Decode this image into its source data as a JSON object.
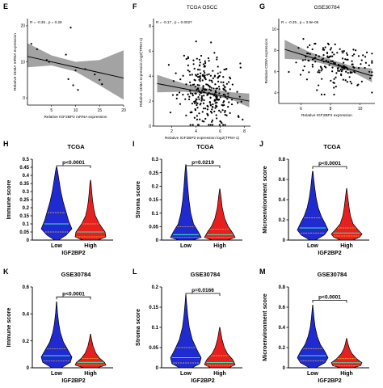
{
  "colors": {
    "low": "#1f2bd1",
    "high": "#e6201f",
    "median": "#38e8b0",
    "quartile": "#f2c230",
    "band": "#8c8c8c"
  },
  "chart_data": [
    {
      "id": "E",
      "letter": "E",
      "type": "scatter",
      "xlabel": "Relative IGF2BP2 mRNA expression",
      "ylabel": "Relative CD8A mRNA expression",
      "annotation": "R = -0.36 , p = 0.28",
      "xlim": [
        0,
        20
      ],
      "ylim": [
        -2,
        22
      ],
      "xticks": [
        5,
        10,
        15,
        20
      ],
      "yticks": [
        0,
        10,
        20
      ],
      "points": [
        [
          0.8,
          15
        ],
        [
          2,
          13.5
        ],
        [
          4,
          10.5
        ],
        [
          4.5,
          10
        ],
        [
          8,
          12
        ],
        [
          9,
          19.5
        ],
        [
          8.5,
          5.2
        ],
        [
          10,
          7.6
        ],
        [
          12,
          8
        ],
        [
          14,
          6.5
        ],
        [
          15,
          5
        ],
        [
          15.5,
          3.8
        ],
        [
          9.5,
          3.5
        ],
        [
          10.5,
          2.2
        ]
      ],
      "fit": [
        [
          0,
          11.5
        ],
        [
          20,
          5.5
        ]
      ],
      "band_lower": [
        [
          0,
          8.5
        ],
        [
          5,
          9.0
        ],
        [
          10,
          7.3
        ],
        [
          15,
          3.5
        ],
        [
          20,
          -0.5
        ]
      ],
      "band_upper": [
        [
          0,
          15.2
        ],
        [
          5,
          11.8
        ],
        [
          10,
          10.0
        ],
        [
          15,
          10.5
        ],
        [
          20,
          13.2
        ]
      ]
    },
    {
      "id": "F",
      "letter": "F",
      "type": "scatter",
      "title": "TCGA OSCC",
      "xlabel": "Relative IGF2BP2 expression log2(TPM+1)",
      "ylabel": "Relative CD8A expression log2(TPM+1)",
      "annotation": "R = -0.17 , p = 0.0027",
      "xlim": [
        0.5,
        8.5
      ],
      "ylim": [
        0,
        8.6
      ],
      "xticks": [
        2,
        4,
        6,
        8
      ],
      "yticks": [
        0,
        2,
        4,
        6,
        8
      ],
      "fit": [
        [
          0.8,
          3.4
        ],
        [
          8.4,
          2.0
        ]
      ],
      "band_lower": [
        [
          0.8,
          2.7
        ],
        [
          3,
          2.75
        ],
        [
          5,
          2.55
        ],
        [
          7,
          2.1
        ],
        [
          8.4,
          1.5
        ]
      ],
      "band_upper": [
        [
          0.8,
          4.1
        ],
        [
          3,
          3.4
        ],
        [
          5,
          3.0
        ],
        [
          7,
          2.7
        ],
        [
          8.4,
          2.6
        ]
      ],
      "cloud": {
        "n": 300,
        "xc": 5,
        "xsd": 1.15,
        "yc": 2.8,
        "ysd": 1.45,
        "seed": 11
      }
    },
    {
      "id": "G",
      "letter": "G",
      "type": "scatter",
      "title": "GSE30784",
      "xlabel": "Relative IGF2BP2 expression",
      "ylabel": "Relative CD8A expression",
      "annotation": "R = -0.35 , p = 3.9e-06",
      "xlim": [
        4.5,
        11
      ],
      "ylim": [
        3,
        11
      ],
      "xticks": [
        6,
        8,
        10
      ],
      "yticks": [
        4,
        6,
        8,
        10
      ],
      "fit": [
        [
          4.9,
          8.1
        ],
        [
          10.8,
          5.6
        ]
      ],
      "band_lower": [
        [
          4.9,
          7.2
        ],
        [
          6.5,
          7.1
        ],
        [
          8,
          6.55
        ],
        [
          9.5,
          5.95
        ],
        [
          10.8,
          5.0
        ]
      ],
      "band_upper": [
        [
          4.9,
          9.0
        ],
        [
          6.5,
          7.9
        ],
        [
          8,
          7.15
        ],
        [
          9.5,
          6.5
        ],
        [
          10.8,
          6.3
        ]
      ],
      "cloud": {
        "n": 165,
        "xc": 8.3,
        "xsd": 1.25,
        "yc": 6.6,
        "ysd": 1.05,
        "seed": 7
      }
    },
    {
      "id": "H",
      "letter": "H",
      "type": "violin",
      "title": "TCGA",
      "ylabel": "Immune score",
      "xlabel": "IGF2BP2",
      "categories": [
        "Low",
        "High"
      ],
      "pvalue": "p<0.0001",
      "ylim": [
        0,
        0.5
      ],
      "yticks": [
        0,
        0.05,
        0.1,
        0.15,
        0.2,
        0.25,
        0.3,
        0.35,
        0.4,
        0.45,
        0.5
      ],
      "violins": [
        {
          "name": "Low",
          "max": 0.45,
          "median": 0.1,
          "q1": 0.05,
          "q3": 0.17,
          "profile": [
            [
              0,
              0.12
            ],
            [
              0.03,
              0.62
            ],
            [
              0.07,
              1
            ],
            [
              0.12,
              0.78
            ],
            [
              0.18,
              0.6
            ],
            [
              0.24,
              0.42
            ],
            [
              0.3,
              0.28
            ],
            [
              0.37,
              0.16
            ],
            [
              0.42,
              0.08
            ],
            [
              0.45,
              0.02
            ]
          ]
        },
        {
          "name": "High",
          "max": 0.37,
          "median": 0.05,
          "q1": 0.02,
          "q3": 0.1,
          "profile": [
            [
              0,
              0.5
            ],
            [
              0.02,
              1
            ],
            [
              0.05,
              0.95
            ],
            [
              0.1,
              0.58
            ],
            [
              0.15,
              0.32
            ],
            [
              0.2,
              0.2
            ],
            [
              0.25,
              0.13
            ],
            [
              0.3,
              0.08
            ],
            [
              0.35,
              0.04
            ],
            [
              0.37,
              0.01
            ]
          ]
        }
      ]
    },
    {
      "id": "I",
      "letter": "I",
      "type": "violin",
      "title": "TCGA",
      "ylabel": "Stroma score",
      "xlabel": "",
      "categories": [
        "Low",
        "High"
      ],
      "pvalue": "p=0.0219",
      "ylim": [
        0,
        0.3
      ],
      "yticks": [
        0,
        0.05,
        0.1,
        0.15,
        0.2,
        0.25,
        0.3
      ],
      "violins": [
        {
          "name": "Low",
          "max": 0.28,
          "median": 0.02,
          "q1": 0.01,
          "q3": 0.05,
          "profile": [
            [
              0,
              0.45
            ],
            [
              0.01,
              1
            ],
            [
              0.03,
              0.82
            ],
            [
              0.06,
              0.5
            ],
            [
              0.1,
              0.32
            ],
            [
              0.15,
              0.2
            ],
            [
              0.2,
              0.12
            ],
            [
              0.25,
              0.06
            ],
            [
              0.28,
              0.01
            ]
          ]
        },
        {
          "name": "High",
          "max": 0.19,
          "median": 0.02,
          "q1": 0.01,
          "q3": 0.04,
          "profile": [
            [
              0,
              0.5
            ],
            [
              0.01,
              1
            ],
            [
              0.03,
              0.8
            ],
            [
              0.05,
              0.55
            ],
            [
              0.08,
              0.32
            ],
            [
              0.12,
              0.16
            ],
            [
              0.16,
              0.08
            ],
            [
              0.19,
              0.01
            ]
          ]
        }
      ]
    },
    {
      "id": "J",
      "letter": "J",
      "type": "violin",
      "title": "TCGA",
      "ylabel": "Microenvironment score",
      "xlabel": "IGF2BP2",
      "categories": [
        "Low",
        "High"
      ],
      "pvalue": "p<0.0001",
      "ylim": [
        0,
        0.8
      ],
      "yticks": [
        0,
        0.2,
        0.4,
        0.6,
        0.8
      ],
      "violins": [
        {
          "name": "Low",
          "max": 0.68,
          "median": 0.12,
          "q1": 0.07,
          "q3": 0.22,
          "profile": [
            [
              0,
              0.18
            ],
            [
              0.05,
              0.75
            ],
            [
              0.1,
              1
            ],
            [
              0.16,
              0.82
            ],
            [
              0.24,
              0.55
            ],
            [
              0.32,
              0.36
            ],
            [
              0.42,
              0.22
            ],
            [
              0.52,
              0.13
            ],
            [
              0.6,
              0.07
            ],
            [
              0.68,
              0.02
            ]
          ]
        },
        {
          "name": "High",
          "max": 0.51,
          "median": 0.07,
          "q1": 0.04,
          "q3": 0.12,
          "profile": [
            [
              0,
              0.4
            ],
            [
              0.03,
              0.85
            ],
            [
              0.06,
              1
            ],
            [
              0.1,
              0.75
            ],
            [
              0.16,
              0.42
            ],
            [
              0.24,
              0.25
            ],
            [
              0.32,
              0.16
            ],
            [
              0.42,
              0.08
            ],
            [
              0.51,
              0.01
            ]
          ]
        }
      ]
    },
    {
      "id": "K",
      "letter": "K",
      "type": "violin",
      "title": "GSE30784",
      "ylabel": "Immune score",
      "xlabel": "IGF2BP2",
      "categories": [
        "Low",
        "High"
      ],
      "pvalue": "p<0.0001",
      "ylim": [
        0,
        0.6
      ],
      "yticks": [
        0,
        0.2,
        0.4,
        0.6
      ],
      "violins": [
        {
          "name": "Low",
          "max": 0.49,
          "median": 0.09,
          "q1": 0.05,
          "q3": 0.14,
          "profile": [
            [
              0,
              0.3
            ],
            [
              0.04,
              0.9
            ],
            [
              0.08,
              1
            ],
            [
              0.13,
              0.75
            ],
            [
              0.19,
              0.45
            ],
            [
              0.26,
              0.25
            ],
            [
              0.33,
              0.14
            ],
            [
              0.41,
              0.06
            ],
            [
              0.49,
              0.01
            ]
          ]
        },
        {
          "name": "High",
          "max": 0.25,
          "median": 0.04,
          "q1": 0.02,
          "q3": 0.07,
          "profile": [
            [
              0,
              0.45
            ],
            [
              0.02,
              1
            ],
            [
              0.04,
              0.92
            ],
            [
              0.07,
              0.6
            ],
            [
              0.11,
              0.34
            ],
            [
              0.16,
              0.17
            ],
            [
              0.21,
              0.07
            ],
            [
              0.25,
              0.01
            ]
          ]
        }
      ]
    },
    {
      "id": "L",
      "letter": "L",
      "type": "violin",
      "title": "GSE30784",
      "ylabel": "Stroma score",
      "xlabel": "IGF2BP2",
      "categories": [
        "Low",
        "High"
      ],
      "pvalue": "p=0.0166",
      "ylim": [
        0,
        0.2
      ],
      "yticks": [
        0,
        0.05,
        0.1,
        0.15,
        0.2
      ],
      "violins": [
        {
          "name": "Low",
          "max": 0.18,
          "median": 0.025,
          "q1": 0.012,
          "q3": 0.05,
          "profile": [
            [
              0,
              0.4
            ],
            [
              0.01,
              0.9
            ],
            [
              0.025,
              1
            ],
            [
              0.045,
              0.72
            ],
            [
              0.07,
              0.42
            ],
            [
              0.1,
              0.22
            ],
            [
              0.13,
              0.12
            ],
            [
              0.16,
              0.05
            ],
            [
              0.18,
              0.01
            ]
          ]
        },
        {
          "name": "High",
          "max": 0.1,
          "median": 0.013,
          "q1": 0.006,
          "q3": 0.03,
          "profile": [
            [
              0,
              0.6
            ],
            [
              0.008,
              1
            ],
            [
              0.02,
              0.85
            ],
            [
              0.035,
              0.5
            ],
            [
              0.05,
              0.3
            ],
            [
              0.07,
              0.15
            ],
            [
              0.085,
              0.08
            ],
            [
              0.1,
              0.01
            ]
          ]
        }
      ]
    },
    {
      "id": "M",
      "letter": "M",
      "type": "violin",
      "title": "GSE30784",
      "ylabel": "Microenvironment score",
      "xlabel": "IGF2BP2",
      "categories": [
        "Low",
        "High"
      ],
      "pvalue": "p<0.0001",
      "ylim": [
        0,
        0.8
      ],
      "yticks": [
        0,
        0.2,
        0.4,
        0.6,
        0.8
      ],
      "violins": [
        {
          "name": "Low",
          "max": 0.62,
          "median": 0.12,
          "q1": 0.07,
          "q3": 0.19,
          "profile": [
            [
              0,
              0.2
            ],
            [
              0.05,
              0.8
            ],
            [
              0.1,
              1
            ],
            [
              0.16,
              0.8
            ],
            [
              0.23,
              0.5
            ],
            [
              0.31,
              0.3
            ],
            [
              0.4,
              0.16
            ],
            [
              0.5,
              0.08
            ],
            [
              0.62,
              0.01
            ]
          ]
        },
        {
          "name": "High",
          "max": 0.29,
          "median": 0.05,
          "q1": 0.02,
          "q3": 0.09,
          "profile": [
            [
              0,
              0.4
            ],
            [
              0.02,
              0.9
            ],
            [
              0.05,
              1
            ],
            [
              0.09,
              0.65
            ],
            [
              0.14,
              0.35
            ],
            [
              0.19,
              0.18
            ],
            [
              0.24,
              0.08
            ],
            [
              0.29,
              0.01
            ]
          ]
        }
      ]
    }
  ]
}
